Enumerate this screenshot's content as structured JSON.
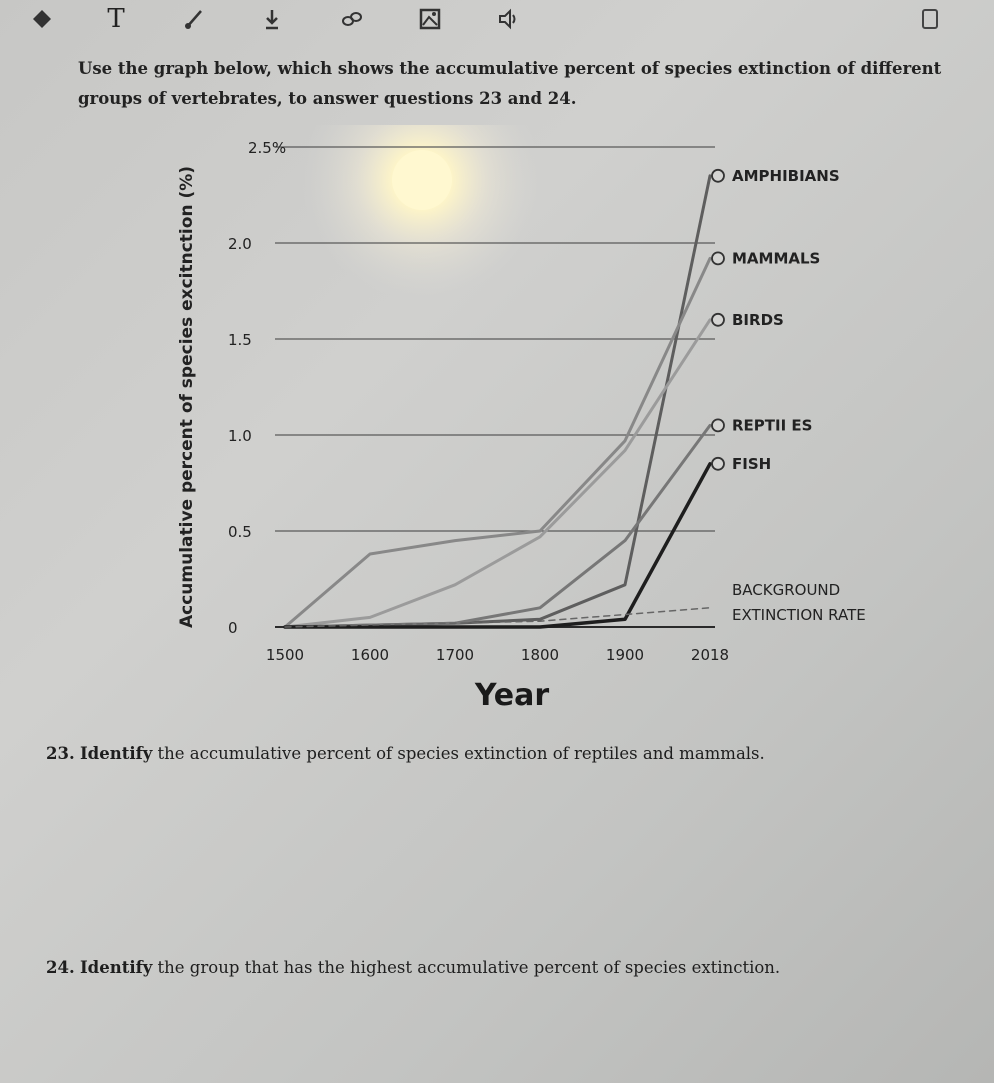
{
  "toolbar": {
    "tools": [
      {
        "name": "eraser-icon"
      },
      {
        "name": "text-tool-icon",
        "glyph": "T"
      },
      {
        "name": "pen-icon"
      },
      {
        "name": "download-icon"
      },
      {
        "name": "link-icon"
      },
      {
        "name": "image-icon"
      },
      {
        "name": "speaker-icon"
      },
      {
        "name": "bookmark-icon"
      }
    ]
  },
  "intro_text": "Use the graph below, which shows the accumulative percent of species extinction of different groups of vertebrates, to answer questions 23 and 24.",
  "chart_data": {
    "type": "line",
    "xlabel": "Year",
    "ylabel": "Accumulative percent of species excitnction (%)",
    "x_ticks": [
      "1500",
      "1600",
      "1700",
      "1800",
      "1900",
      "2018"
    ],
    "y_ticks": [
      "0",
      "0.5",
      "1.0",
      "1.5",
      "2.0",
      "2.5%"
    ],
    "ylim": [
      0,
      2.5
    ],
    "grid": "horizontal",
    "series": [
      {
        "name": "AMPHIBIANS",
        "color": "#5e5e5e",
        "width": 3,
        "dash": "",
        "x": [
          1500,
          1600,
          1700,
          1800,
          1900,
          2018
        ],
        "y": [
          0,
          0.01,
          0.02,
          0.04,
          0.22,
          2.35
        ]
      },
      {
        "name": "MAMMALS",
        "color": "#888888",
        "width": 3,
        "dash": "",
        "x": [
          1500,
          1600,
          1700,
          1800,
          1900,
          2018
        ],
        "y": [
          0,
          0.38,
          0.45,
          0.5,
          0.97,
          1.92
        ]
      },
      {
        "name": "BIRDS",
        "color": "#9b9b9b",
        "width": 3,
        "dash": "",
        "x": [
          1500,
          1600,
          1700,
          1800,
          1900,
          2018
        ],
        "y": [
          0,
          0.05,
          0.22,
          0.47,
          0.92,
          1.6
        ]
      },
      {
        "name": "REPTILES",
        "color": "#777777",
        "width": 3,
        "dash": "",
        "x": [
          1500,
          1600,
          1700,
          1800,
          1900,
          2018
        ],
        "y": [
          0,
          0.01,
          0.02,
          0.1,
          0.45,
          1.05
        ]
      },
      {
        "name": "FISH",
        "color": "#1e1e1e",
        "width": 3.5,
        "dash": "",
        "x": [
          1500,
          1600,
          1700,
          1800,
          1900,
          2018
        ],
        "y": [
          0,
          0,
          0,
          0,
          0.04,
          0.85
        ]
      },
      {
        "name": "BACKGROUND EXTINCTION RATE",
        "color": "#666666",
        "width": 1.5,
        "dash": "6,5",
        "x": [
          1500,
          1800,
          2018
        ],
        "y": [
          0,
          0.03,
          0.1
        ]
      }
    ],
    "labels": [
      {
        "series": "AMPHIBIANS",
        "text": "AMPHIBIANS",
        "marker_y": 2.35
      },
      {
        "series": "MAMMALS",
        "text": "MAMMALS",
        "marker_y": 1.92
      },
      {
        "series": "BIRDS",
        "text": "BIRDS",
        "marker_y": 1.6
      },
      {
        "series": "REPTILES",
        "text": "REPTII ES",
        "marker_y": 1.05
      },
      {
        "series": "FISH",
        "text": "FISH",
        "marker_y": 0.85
      }
    ],
    "background_label": [
      "BACKGROUND",
      "EXTINCTION RATE"
    ]
  },
  "questions": [
    {
      "number": "23.",
      "verb": "Identify",
      "text": " the accumulative percent of species extinction of reptiles and mammals."
    },
    {
      "number": "24.",
      "verb": "Identify",
      "text": " the group that has the highest accumulative percent of species extinction."
    }
  ]
}
